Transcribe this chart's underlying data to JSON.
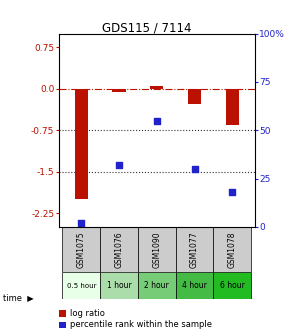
{
  "title": "GDS115 / 7114",
  "samples": [
    "GSM1075",
    "GSM1076",
    "GSM1090",
    "GSM1077",
    "GSM1078"
  ],
  "time_labels": [
    "0.5 hour",
    "1 hour",
    "2 hour",
    "4 hour",
    "6 hour"
  ],
  "time_colors": [
    "#e8ffe8",
    "#aaddaa",
    "#77cc77",
    "#44bb44",
    "#22bb22"
  ],
  "log_ratio": [
    -2.0,
    -0.05,
    0.05,
    -0.28,
    -0.65
  ],
  "percentile": [
    2,
    32,
    55,
    30,
    18
  ],
  "bar_color": "#bb1100",
  "dot_color": "#2222cc",
  "ylim_left": [
    -2.5,
    1.0
  ],
  "ylim_right": [
    0,
    100
  ],
  "yticks_left": [
    0.75,
    0.0,
    -0.75,
    -1.5,
    -2.25
  ],
  "yticks_right": [
    100,
    75,
    50,
    25,
    0
  ],
  "hlines": [
    0.0,
    -0.75,
    -1.5
  ],
  "hline_styles": [
    "dashdot",
    "dotted",
    "dotted"
  ],
  "hline_colors": [
    "#bb1100",
    "#333333",
    "#333333"
  ],
  "sample_header_color": "#cccccc",
  "legend_log_ratio_color": "#bb1100",
  "legend_percentile_color": "#2222cc"
}
